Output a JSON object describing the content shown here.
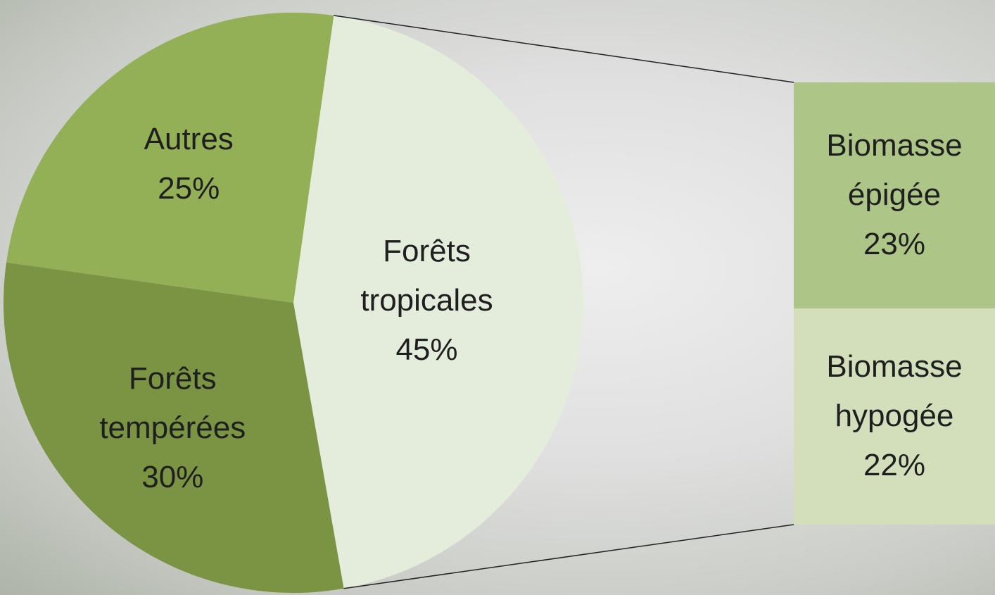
{
  "chart_data": {
    "type": "pie-of-bar",
    "categories": [
      "Forêts tropicales",
      "Forêts tempérées",
      "Autres"
    ],
    "values": [
      45,
      30,
      25
    ],
    "value_labels": [
      "45%",
      "30%",
      "25%"
    ],
    "colors": [
      "#e4ecdc",
      "#7a9443",
      "#93b056"
    ],
    "bar": {
      "categories": [
        "Biomasse épigée",
        "Biomasse hypogée"
      ],
      "values": [
        23,
        22
      ],
      "value_labels": [
        "23%",
        "22%"
      ],
      "colors": [
        "#adc688",
        "#d2dfba"
      ]
    }
  }
}
